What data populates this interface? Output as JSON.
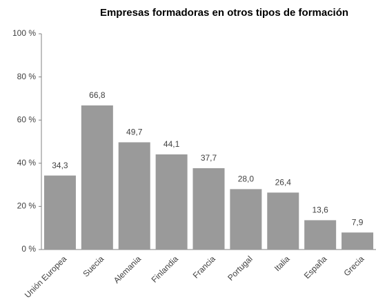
{
  "chart_data": {
    "type": "bar",
    "title": "Empresas formadoras en otros tipos de formación",
    "categories": [
      "Unión Europea",
      "Suecia",
      "Alemania",
      "Finlandia",
      "Francia",
      "Portugal",
      "Italia",
      "España",
      "Grecia"
    ],
    "values": [
      34.3,
      66.8,
      49.7,
      44.1,
      37.7,
      28.0,
      26.4,
      13.6,
      7.9
    ],
    "value_labels": [
      "34,3",
      "66,8",
      "49,7",
      "44,1",
      "37,7",
      "28,0",
      "26,4",
      "13,6",
      "7,9"
    ],
    "color": "#9a9a9a",
    "ylim": [
      0,
      100
    ],
    "yticks": [
      {
        "value": 0,
        "label": "0 %"
      },
      {
        "value": 20,
        "label": "20 %"
      },
      {
        "value": 40,
        "label": "40 %"
      },
      {
        "value": 60,
        "label": "60 %"
      },
      {
        "value": 80,
        "label": "80 %"
      },
      {
        "value": 100,
        "label": "100 %"
      }
    ],
    "grid": false
  }
}
